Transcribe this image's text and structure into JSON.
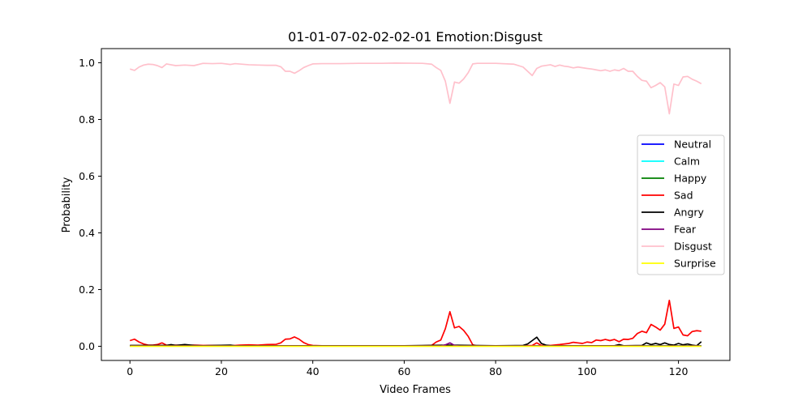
{
  "chart_data": {
    "type": "line",
    "title": "01-01-07-02-02-02-01 Emotion:Disgust",
    "xlabel": "Video Frames",
    "ylabel": "Probability",
    "xlim": [
      -6.25,
      131.25
    ],
    "ylim": [
      -0.05,
      1.05
    ],
    "xticks": [
      0,
      20,
      40,
      60,
      80,
      100,
      120
    ],
    "yticks": [
      0.0,
      0.2,
      0.4,
      0.6,
      0.8,
      1.0
    ],
    "xtick_labels": [
      "0",
      "20",
      "40",
      "60",
      "80",
      "100",
      "120"
    ],
    "ytick_labels": [
      "0.0",
      "0.2",
      "0.4",
      "0.6",
      "0.8",
      "1.0"
    ],
    "grid": false,
    "legend_position": "center-right",
    "series": [
      {
        "name": "Neutral",
        "color": "#0000ff",
        "points": [
          [
            0,
            0.002
          ],
          [
            125,
            0.002
          ]
        ]
      },
      {
        "name": "Calm",
        "color": "#00ffff",
        "points": [
          [
            0,
            0.001
          ],
          [
            125,
            0.001
          ]
        ]
      },
      {
        "name": "Happy",
        "color": "#008000",
        "points": [
          [
            0,
            0.001
          ],
          [
            125,
            0.001
          ]
        ]
      },
      {
        "name": "Sad",
        "color": "#ff0000",
        "points": [
          [
            0,
            0.02
          ],
          [
            1,
            0.025
          ],
          [
            2,
            0.015
          ],
          [
            3,
            0.008
          ],
          [
            4,
            0.004
          ],
          [
            5,
            0.004
          ],
          [
            6,
            0.006
          ],
          [
            7,
            0.012
          ],
          [
            8,
            0.004
          ],
          [
            9,
            0.003
          ],
          [
            10,
            0.004
          ],
          [
            12,
            0.003
          ],
          [
            14,
            0.004
          ],
          [
            16,
            0.003
          ],
          [
            20,
            0.003
          ],
          [
            22,
            0.002
          ],
          [
            24,
            0.004
          ],
          [
            26,
            0.005
          ],
          [
            28,
            0.004
          ],
          [
            30,
            0.006
          ],
          [
            32,
            0.007
          ],
          [
            33,
            0.012
          ],
          [
            34,
            0.025
          ],
          [
            35,
            0.026
          ],
          [
            36,
            0.033
          ],
          [
            37,
            0.025
          ],
          [
            38,
            0.013
          ],
          [
            39,
            0.006
          ],
          [
            40,
            0.003
          ],
          [
            42,
            0.002
          ],
          [
            46,
            0.002
          ],
          [
            50,
            0.001
          ],
          [
            55,
            0.001
          ],
          [
            60,
            0.001
          ],
          [
            64,
            0.002
          ],
          [
            66,
            0.003
          ],
          [
            67,
            0.015
          ],
          [
            68,
            0.022
          ],
          [
            69,
            0.062
          ],
          [
            70,
            0.122
          ],
          [
            71,
            0.065
          ],
          [
            72,
            0.07
          ],
          [
            73,
            0.056
          ],
          [
            74,
            0.035
          ],
          [
            75,
            0.005
          ],
          [
            76,
            0.001
          ],
          [
            80,
            0.001
          ],
          [
            85,
            0.001
          ],
          [
            88,
            0.003
          ],
          [
            89,
            0.012
          ],
          [
            90,
            0.003
          ],
          [
            92,
            0.003
          ],
          [
            94,
            0.006
          ],
          [
            96,
            0.01
          ],
          [
            97,
            0.014
          ],
          [
            98,
            0.012
          ],
          [
            99,
            0.01
          ],
          [
            100,
            0.015
          ],
          [
            101,
            0.013
          ],
          [
            102,
            0.022
          ],
          [
            103,
            0.02
          ],
          [
            104,
            0.024
          ],
          [
            105,
            0.02
          ],
          [
            106,
            0.024
          ],
          [
            107,
            0.016
          ],
          [
            108,
            0.025
          ],
          [
            109,
            0.024
          ],
          [
            110,
            0.028
          ],
          [
            111,
            0.045
          ],
          [
            112,
            0.053
          ],
          [
            113,
            0.048
          ],
          [
            114,
            0.077
          ],
          [
            115,
            0.068
          ],
          [
            116,
            0.057
          ],
          [
            117,
            0.078
          ],
          [
            118,
            0.162
          ],
          [
            119,
            0.063
          ],
          [
            120,
            0.068
          ],
          [
            121,
            0.04
          ],
          [
            122,
            0.037
          ],
          [
            123,
            0.052
          ],
          [
            124,
            0.055
          ],
          [
            125,
            0.053
          ]
        ]
      },
      {
        "name": "Angry",
        "color": "#000000",
        "points": [
          [
            0,
            0.003
          ],
          [
            8,
            0.003
          ],
          [
            9,
            0.006
          ],
          [
            10,
            0.003
          ],
          [
            12,
            0.006
          ],
          [
            14,
            0.003
          ],
          [
            16,
            0.002
          ],
          [
            22,
            0.004
          ],
          [
            23,
            0.002
          ],
          [
            60,
            0.002
          ],
          [
            70,
            0.004
          ],
          [
            80,
            0.002
          ],
          [
            86,
            0.003
          ],
          [
            87,
            0.008
          ],
          [
            88,
            0.02
          ],
          [
            89,
            0.032
          ],
          [
            90,
            0.01
          ],
          [
            91,
            0.004
          ],
          [
            92,
            0.002
          ],
          [
            100,
            0.002
          ],
          [
            106,
            0.002
          ],
          [
            107,
            0.006
          ],
          [
            108,
            0.002
          ],
          [
            112,
            0.003
          ],
          [
            113,
            0.012
          ],
          [
            114,
            0.006
          ],
          [
            115,
            0.01
          ],
          [
            116,
            0.006
          ],
          [
            117,
            0.012
          ],
          [
            118,
            0.006
          ],
          [
            119,
            0.004
          ],
          [
            120,
            0.01
          ],
          [
            121,
            0.005
          ],
          [
            122,
            0.008
          ],
          [
            123,
            0.004
          ],
          [
            124,
            0.002
          ],
          [
            125,
            0.016
          ]
        ]
      },
      {
        "name": "Fear",
        "color": "#800080",
        "points": [
          [
            0,
            0.001
          ],
          [
            68,
            0.001
          ],
          [
            69,
            0.005
          ],
          [
            70,
            0.012
          ],
          [
            71,
            0.003
          ],
          [
            72,
            0.001
          ],
          [
            125,
            0.001
          ]
        ]
      },
      {
        "name": "Disgust",
        "color": "#ffc0cb",
        "points": [
          [
            0,
            0.978
          ],
          [
            1,
            0.973
          ],
          [
            2,
            0.985
          ],
          [
            3,
            0.992
          ],
          [
            4,
            0.995
          ],
          [
            5,
            0.994
          ],
          [
            6,
            0.99
          ],
          [
            7,
            0.983
          ],
          [
            8,
            0.996
          ],
          [
            10,
            0.99
          ],
          [
            12,
            0.992
          ],
          [
            14,
            0.99
          ],
          [
            16,
            0.998
          ],
          [
            18,
            0.997
          ],
          [
            20,
            0.998
          ],
          [
            22,
            0.994
          ],
          [
            23,
            0.997
          ],
          [
            26,
            0.993
          ],
          [
            28,
            0.992
          ],
          [
            30,
            0.991
          ],
          [
            32,
            0.991
          ],
          [
            33,
            0.986
          ],
          [
            34,
            0.97
          ],
          [
            35,
            0.97
          ],
          [
            36,
            0.963
          ],
          [
            37,
            0.972
          ],
          [
            38,
            0.983
          ],
          [
            39,
            0.99
          ],
          [
            40,
            0.996
          ],
          [
            42,
            0.997
          ],
          [
            46,
            0.997
          ],
          [
            50,
            0.998
          ],
          [
            55,
            0.998
          ],
          [
            58,
            0.999
          ],
          [
            64,
            0.998
          ],
          [
            66,
            0.995
          ],
          [
            67,
            0.983
          ],
          [
            68,
            0.973
          ],
          [
            69,
            0.935
          ],
          [
            70,
            0.857
          ],
          [
            71,
            0.932
          ],
          [
            72,
            0.928
          ],
          [
            73,
            0.943
          ],
          [
            74,
            0.965
          ],
          [
            75,
            0.996
          ],
          [
            76,
            0.998
          ],
          [
            80,
            0.998
          ],
          [
            84,
            0.995
          ],
          [
            85,
            0.99
          ],
          [
            86,
            0.985
          ],
          [
            87,
            0.97
          ],
          [
            88,
            0.955
          ],
          [
            89,
            0.98
          ],
          [
            90,
            0.988
          ],
          [
            92,
            0.993
          ],
          [
            93,
            0.987
          ],
          [
            94,
            0.992
          ],
          [
            95,
            0.988
          ],
          [
            96,
            0.986
          ],
          [
            97,
            0.982
          ],
          [
            98,
            0.985
          ],
          [
            100,
            0.98
          ],
          [
            101,
            0.978
          ],
          [
            102,
            0.975
          ],
          [
            103,
            0.972
          ],
          [
            104,
            0.975
          ],
          [
            105,
            0.97
          ],
          [
            106,
            0.975
          ],
          [
            107,
            0.972
          ],
          [
            108,
            0.98
          ],
          [
            109,
            0.97
          ],
          [
            110,
            0.97
          ],
          [
            111,
            0.952
          ],
          [
            112,
            0.938
          ],
          [
            113,
            0.935
          ],
          [
            114,
            0.912
          ],
          [
            115,
            0.92
          ],
          [
            116,
            0.93
          ],
          [
            117,
            0.915
          ],
          [
            118,
            0.82
          ],
          [
            119,
            0.925
          ],
          [
            120,
            0.92
          ],
          [
            121,
            0.95
          ],
          [
            122,
            0.952
          ],
          [
            123,
            0.942
          ],
          [
            124,
            0.935
          ],
          [
            125,
            0.926
          ]
        ]
      },
      {
        "name": "Surprise",
        "color": "#ffff00",
        "points": [
          [
            0,
            0.0
          ],
          [
            125,
            0.0
          ]
        ]
      }
    ]
  }
}
